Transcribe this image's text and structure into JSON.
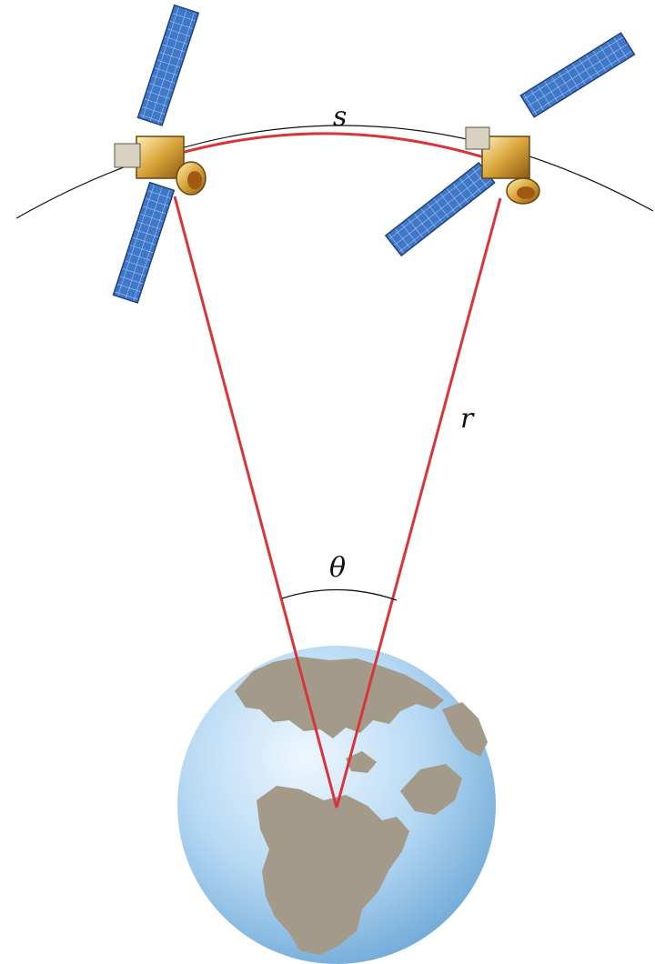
{
  "labels": {
    "arc": "s",
    "radius": "r",
    "angle": "θ"
  },
  "colors": {
    "accent_line": "#d9343a",
    "orbit": "#111111",
    "panel_blue": "#3f78c9",
    "panel_grid": "#bcd3f2",
    "satellite_gold": "#d8a43a",
    "ocean": "#9cc7ea",
    "land": "#a49a8a"
  },
  "icons": [
    "satellite-icon",
    "satellite-icon",
    "earth-globe-icon"
  ]
}
